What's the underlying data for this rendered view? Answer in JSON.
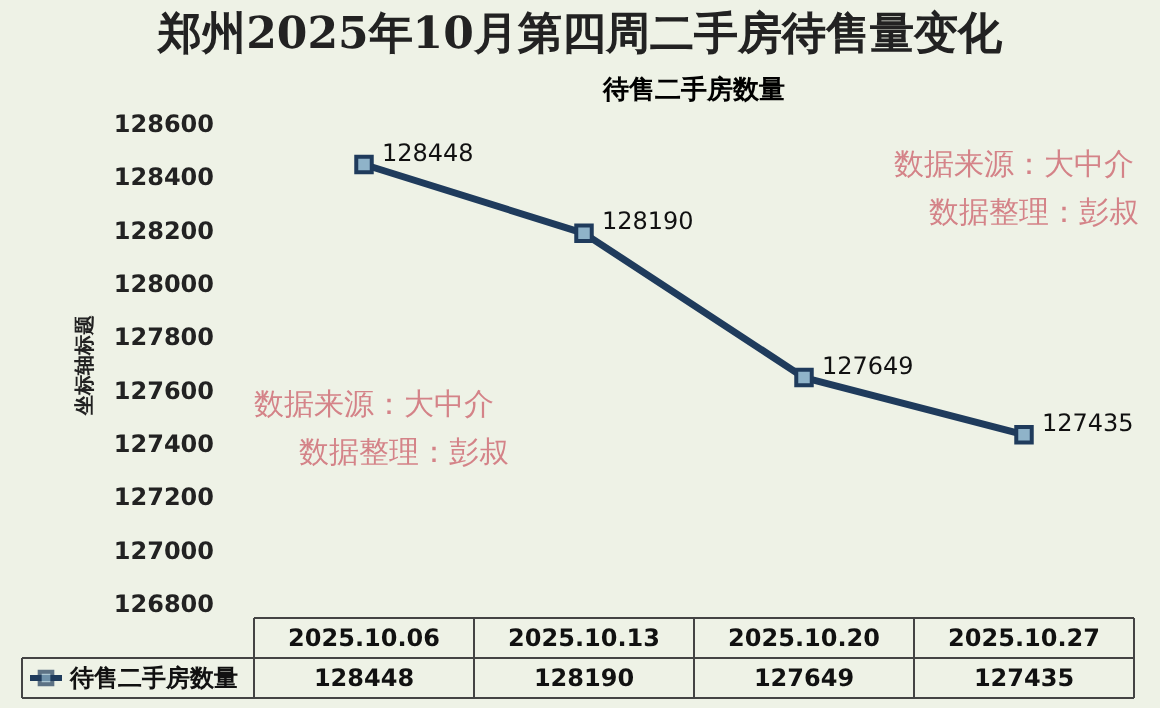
{
  "chart_data": {
    "type": "line",
    "title": "郑州2025年10月第四周二手房待售量变化",
    "subtitle": "待售二手房数量",
    "ylabel": "坐标轴标题",
    "categories": [
      "2025.10.06",
      "2025.10.13",
      "2025.10.20",
      "2025.10.27"
    ],
    "series": [
      {
        "name": "待售二手房数量",
        "color": "#1f3b5c",
        "values": [
          128448,
          128190,
          127649,
          127435
        ]
      }
    ],
    "ylim": [
      126800,
      128600
    ],
    "yticks": [
      126800,
      127000,
      127200,
      127400,
      127600,
      127800,
      128000,
      128200,
      128400,
      128600
    ],
    "grid": false,
    "marker": "square",
    "data_labels": true,
    "legend": "bottom",
    "annotations": [
      "数据来源：大中介",
      "数据整理：彭叔",
      "数据来源：大中介",
      "数据整理：彭叔",
      {
        "text": "128448",
        "x": "2025.10.06"
      },
      {
        "text": "128190",
        "x": "2025.10.13"
      },
      {
        "text": "127649",
        "x": "2025.10.20"
      },
      {
        "text": "127435",
        "x": "2025.10.27"
      }
    ]
  }
}
